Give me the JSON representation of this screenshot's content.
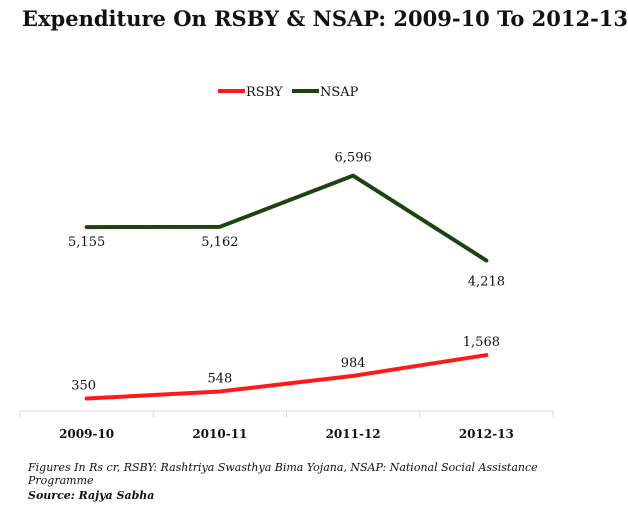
{
  "chart_data": {
    "type": "line",
    "title": "Expenditure On RSBY & NSAP: 2009-10 To 2012-13",
    "categories": [
      "2009-10",
      "2010-11",
      "2011-12",
      "2012-13"
    ],
    "series": [
      {
        "name": "RSBY",
        "color": "#ff1a1a",
        "values": [
          350,
          548,
          984,
          1568
        ],
        "labels": [
          "350",
          "548",
          "984",
          "1,568"
        ]
      },
      {
        "name": "NSAP",
        "color": "#1e4312",
        "values": [
          5155,
          5162,
          6596,
          4218
        ],
        "labels": [
          "5,155",
          "5,162",
          "6,596",
          "4,218"
        ]
      }
    ],
    "ylim": [
      0,
      7500
    ],
    "grid": false,
    "legend": "top-center"
  },
  "footer": {
    "note": "Figures In Rs cr, RSBY: Rashtriya Swasthya Bima Yojana, NSAP: National Social Assistance Programme",
    "source": "Source: Rajya Sabha"
  }
}
